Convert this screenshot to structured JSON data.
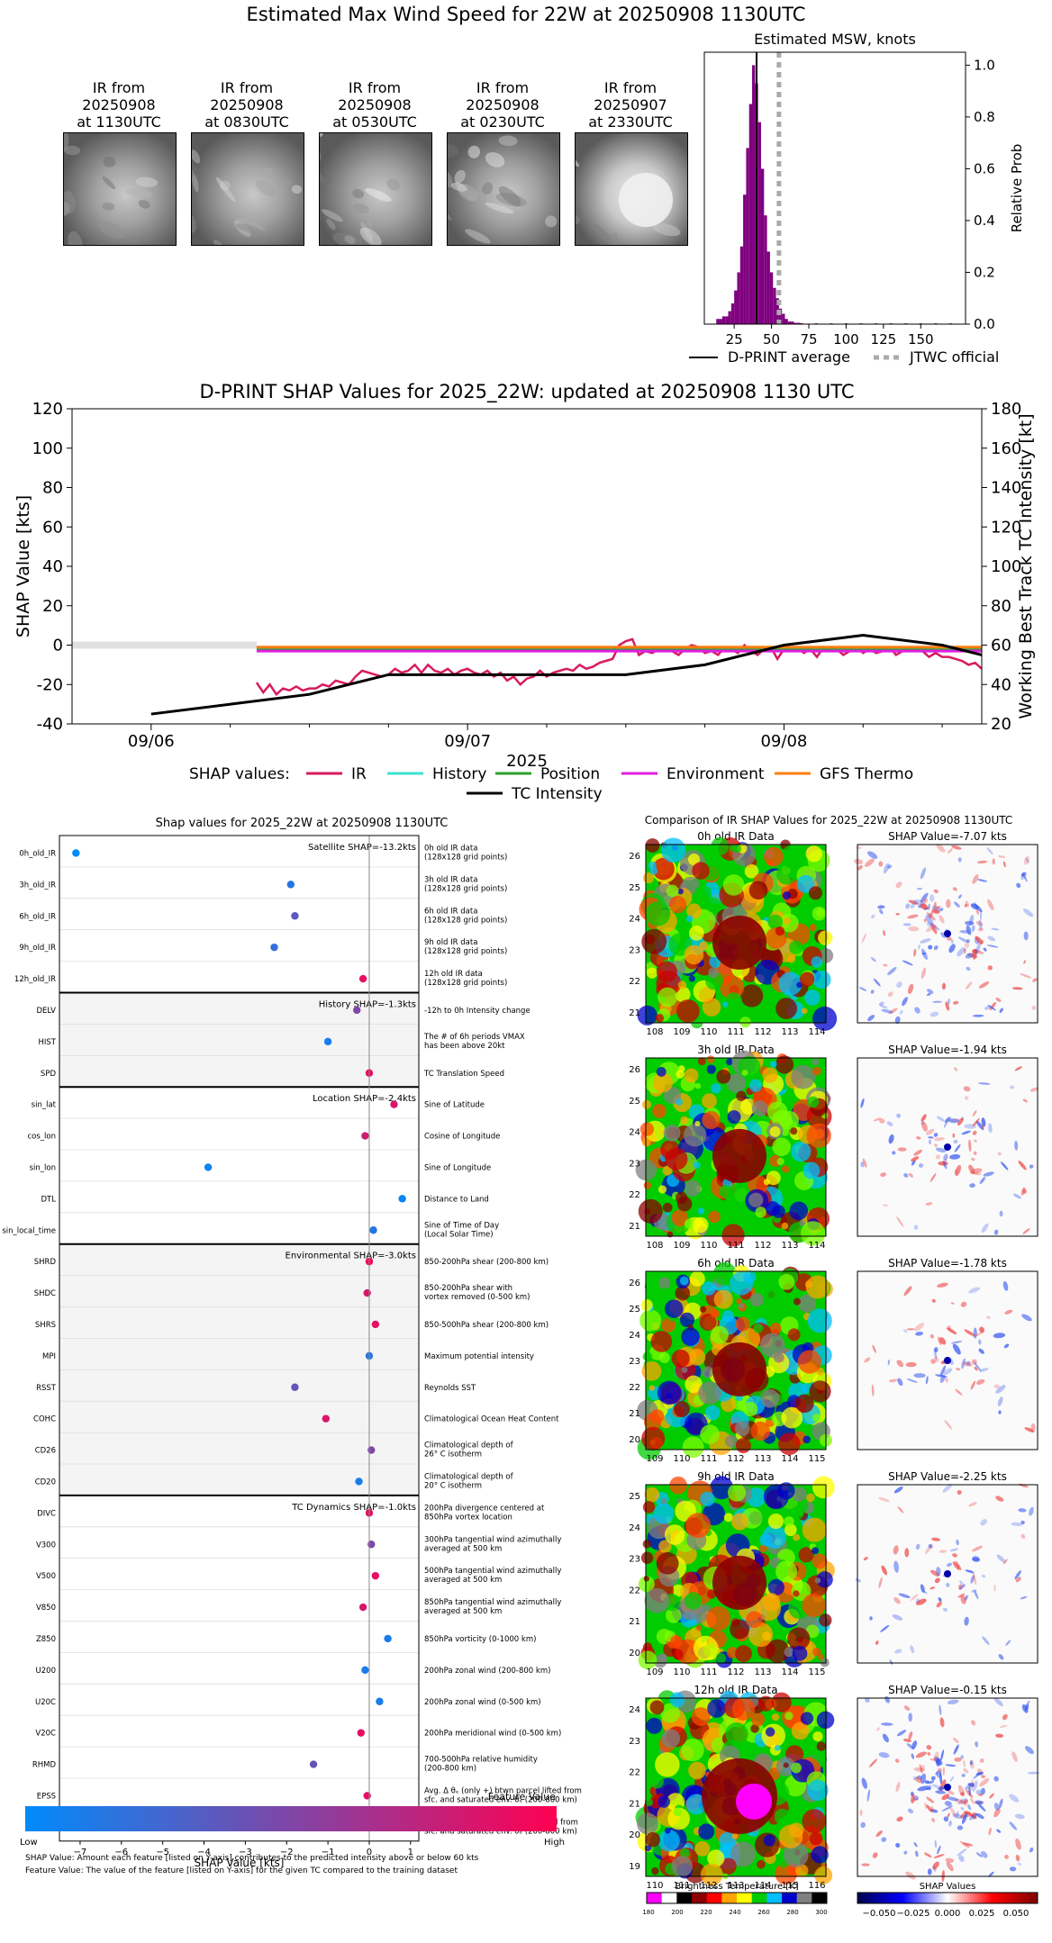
{
  "page_title": "Estimated Max Wind Speed for 22W at 20250908 1130UTC",
  "ir_thumbnails": [
    {
      "caption": [
        "IR from",
        "20250908",
        "at 1130UTC"
      ]
    },
    {
      "caption": [
        "IR from",
        "20250908",
        "at 0830UTC"
      ]
    },
    {
      "caption": [
        "IR from",
        "20250908",
        "at 0530UTC"
      ]
    },
    {
      "caption": [
        "IR from",
        "20250908",
        "at 0230UTC"
      ]
    },
    {
      "caption": [
        "IR from",
        "20250907",
        "at 2330UTC"
      ]
    }
  ],
  "chart_data": [
    {
      "type": "bar",
      "title": "Estimated MSW, knots",
      "ylabel": "Relative Prob",
      "xlim": [
        5,
        180
      ],
      "ylim": [
        0,
        1.05
      ],
      "xticks": [
        25,
        50,
        75,
        100,
        125,
        150
      ],
      "yticks": [
        0.0,
        0.2,
        0.4,
        0.6,
        0.8,
        1.0
      ],
      "bar_width": 2,
      "bar_color": "#800080",
      "x": [
        14,
        16,
        18,
        20,
        22,
        24,
        26,
        28,
        30,
        32,
        34,
        36,
        38,
        40,
        42,
        44,
        46,
        48,
        50,
        52,
        54,
        56,
        58,
        60,
        62,
        64,
        66,
        68,
        70,
        80,
        90,
        100,
        110,
        120,
        130,
        140,
        150,
        160,
        170
      ],
      "values": [
        0.02,
        0.02,
        0.03,
        0.03,
        0.05,
        0.08,
        0.13,
        0.2,
        0.3,
        0.5,
        0.68,
        0.85,
        1.0,
        0.93,
        0.78,
        0.6,
        0.42,
        0.28,
        0.2,
        0.14,
        0.1,
        0.06,
        0.04,
        0.02,
        0.01,
        0.01,
        0.005,
        0.005,
        0.004,
        0.003,
        0.003,
        0.003,
        0.003,
        0.003,
        0.003,
        0.003,
        0.003,
        0.003,
        0.003
      ],
      "dprint_average": 40,
      "jtwc_official": 55,
      "legend": [
        {
          "label": "D-PRINT average",
          "color": "#000000",
          "style": "solid"
        },
        {
          "label": "JTWC official",
          "color": "#aaaaaa",
          "style": "dotted"
        }
      ]
    },
    {
      "type": "line",
      "title": "D-PRINT SHAP Values for 2025_22W: updated at 20250908 1130 UTC",
      "xlabel": "2025",
      "ylabel": "SHAP Value [kts]",
      "y2label": "Working Best Track TC Intensity [kt]",
      "xlim_hours": [
        -6,
        63
      ],
      "xticks": [
        {
          "label": "09/06",
          "hour": 0
        },
        {
          "label": "09/07",
          "hour": 24
        },
        {
          "label": "09/08",
          "hour": 48
        }
      ],
      "ylim": [
        -40,
        120
      ],
      "yticks": [
        -40,
        -20,
        0,
        20,
        40,
        60,
        80,
        100,
        120
      ],
      "y2lim": [
        20,
        180
      ],
      "y2ticks": [
        20,
        40,
        60,
        80,
        100,
        120,
        140,
        160,
        180
      ],
      "series": [
        {
          "name": "IR",
          "color": "#d81b60",
          "x": [
            8,
            8.5,
            9,
            9.5,
            10,
            10.5,
            11,
            11.5,
            12,
            12.5,
            13,
            13.5,
            14,
            14.5,
            15,
            15.5,
            16,
            16.5,
            17,
            17.5,
            18,
            18.5,
            19,
            19.5,
            20,
            20.5,
            21,
            21.5,
            22,
            22.5,
            23,
            23.5,
            24,
            24.5,
            25,
            25.5,
            26,
            26.5,
            27,
            27.5,
            28,
            28.5,
            29,
            29.5,
            30,
            30.5,
            31,
            31.5,
            32,
            32.5,
            33,
            33.5,
            34,
            34.5,
            35,
            35.5,
            36,
            36.5,
            37,
            37.5,
            38,
            38.5,
            39,
            39.5,
            40,
            40.5,
            41,
            41.5,
            42,
            42.5,
            43,
            43.5,
            44,
            44.5,
            45,
            45.5,
            46,
            46.5,
            47,
            47.5,
            48,
            48.5,
            49,
            49.5,
            50,
            50.5,
            51,
            51.5,
            52,
            52.5,
            53,
            53.5,
            54,
            54.5,
            55,
            55.5,
            56,
            56.5,
            57,
            57.5,
            58,
            58.5,
            59,
            59.5,
            60,
            60.5,
            61,
            61.5,
            62,
            62.5,
            63
          ],
          "values": [
            -19,
            -24,
            -20,
            -25,
            -22,
            -23,
            -21,
            -23,
            -22,
            -22,
            -20,
            -21,
            -18,
            -19,
            -20,
            -16,
            -13,
            -14,
            -15,
            -16,
            -15,
            -12,
            -14,
            -13,
            -10,
            -14,
            -10,
            -13,
            -14,
            -12,
            -15,
            -13,
            -12,
            -14,
            -15,
            -13,
            -16,
            -14,
            -18,
            -16,
            -20,
            -17,
            -16,
            -13,
            -16,
            -14,
            -13,
            -12,
            -13,
            -10,
            -12,
            -11,
            -9,
            -8,
            -7,
            0,
            2,
            3,
            -5,
            -3,
            -4,
            -2,
            -1,
            -3,
            -5,
            -2,
            0,
            -1,
            -4,
            -3,
            -5,
            -1,
            -2,
            -4,
            0,
            -3,
            -5,
            -2,
            -1,
            -7,
            -2,
            -3,
            -1,
            -4,
            -2,
            -6,
            -1,
            -3,
            -2,
            -5,
            -3,
            -1,
            -4,
            -2,
            -4,
            -3,
            -1,
            -5,
            -3,
            -2,
            -1,
            -3,
            -6,
            -4,
            -6,
            -6,
            -7,
            -8,
            -10,
            -9,
            -12
          ]
        },
        {
          "name": "History",
          "color": "#40e0d0",
          "x": [
            8,
            63
          ],
          "values": [
            -1.3,
            -1.3
          ]
        },
        {
          "name": "Position",
          "color": "#2ca02c",
          "x": [
            8,
            63
          ],
          "values": [
            -2.4,
            -2.4
          ]
        },
        {
          "name": "Environment",
          "color": "#e020e0",
          "x": [
            8,
            63
          ],
          "values": [
            -3.0,
            -3.0
          ]
        },
        {
          "name": "GFS Thermo",
          "color": "#ff7f0e",
          "x": [
            8,
            63
          ],
          "values": [
            -1.0,
            -1.0
          ]
        },
        {
          "name": "TC Intensity",
          "color": "#000000",
          "axis": "right",
          "x": [
            0,
            6,
            12,
            18,
            24,
            30,
            36,
            42,
            48,
            54,
            60,
            63
          ],
          "values": [
            25,
            30,
            35,
            45,
            45,
            45,
            45,
            50,
            60,
            65,
            60,
            55
          ]
        }
      ],
      "legend_prefix": "SHAP values:"
    },
    {
      "type": "scatter",
      "title": "Shap values for 2025_22W at 20250908 1130UTC",
      "xlabel": "SHAP Value [kts]",
      "xlim": [
        -7.5,
        1.2
      ],
      "xticks": [
        -7,
        -6,
        -5,
        -4,
        -3,
        -2,
        -1,
        0,
        1
      ],
      "groups": [
        {
          "label": "Satellite SHAP=-13.2kts",
          "shaded": false,
          "features": [
            {
              "name": "0h_old_IR",
              "shap": -7.1,
              "value": 0.0,
              "desc": [
                "0h old IR data",
                "(128x128 grid points)"
              ]
            },
            {
              "name": "3h_old_IR",
              "shap": -1.9,
              "value": 0.15,
              "desc": [
                "3h old IR data",
                "(128x128 grid points)"
              ]
            },
            {
              "name": "6h_old_IR",
              "shap": -1.8,
              "value": 0.35,
              "desc": [
                "6h old IR data",
                "(128x128 grid points)"
              ]
            },
            {
              "name": "9h_old_IR",
              "shap": -2.3,
              "value": 0.2,
              "desc": [
                "9h old IR data",
                "(128x128 grid points)"
              ]
            },
            {
              "name": "12h_old_IR",
              "shap": -0.15,
              "value": 0.9,
              "desc": [
                "12h old IR data",
                "(128x128 grid points)"
              ]
            }
          ]
        },
        {
          "label": "History SHAP=-1.3kts",
          "shaded": true,
          "features": [
            {
              "name": "DELV",
              "shap": -0.3,
              "value": 0.5,
              "desc": [
                "-12h to 0h Intensity change"
              ]
            },
            {
              "name": "HIST",
              "shap": -1.0,
              "value": 0.1,
              "desc": [
                "The # of 6h periods VMAX",
                "has been above 20kt"
              ]
            },
            {
              "name": "SPD",
              "shap": 0.0,
              "value": 0.9,
              "desc": [
                "TC Translation Speed"
              ]
            }
          ]
        },
        {
          "label": "Location SHAP=-2.4kts",
          "shaded": false,
          "features": [
            {
              "name": "sin_lat",
              "shap": 0.6,
              "value": 0.85,
              "desc": [
                "Sine of Latitude"
              ]
            },
            {
              "name": "cos_lon",
              "shap": -0.1,
              "value": 0.8,
              "desc": [
                "Cosine of Longitude"
              ]
            },
            {
              "name": "sin_lon",
              "shap": -3.9,
              "value": 0.05,
              "desc": [
                "Sine of Longitude"
              ]
            },
            {
              "name": "DTL",
              "shap": 0.8,
              "value": 0.05,
              "desc": [
                "Distance to Land"
              ]
            },
            {
              "name": "sin_local_time",
              "shap": 0.1,
              "value": 0.15,
              "desc": [
                "Sine of Time of Day",
                "(Local Solar Time)"
              ]
            }
          ]
        },
        {
          "label": "Environmental SHAP=-3.0kts",
          "shaded": true,
          "features": [
            {
              "name": "SHRD",
              "shap": 0.0,
              "value": 0.95,
              "desc": [
                "850-200hPa shear (200-800 km)"
              ]
            },
            {
              "name": "SHDC",
              "shap": -0.05,
              "value": 0.85,
              "desc": [
                "850-200hPa shear with",
                "vortex removed (0-500 km)"
              ]
            },
            {
              "name": "SHRS",
              "shap": 0.15,
              "value": 0.9,
              "desc": [
                "850-500hPa shear (200-800 km)"
              ]
            },
            {
              "name": "MPI",
              "shap": 0.0,
              "value": 0.15,
              "desc": [
                "Maximum potential intensity"
              ]
            },
            {
              "name": "RSST",
              "shap": -1.8,
              "value": 0.4,
              "desc": [
                "Reynolds SST"
              ]
            },
            {
              "name": "COHC",
              "shap": -1.05,
              "value": 0.85,
              "desc": [
                "Climatological Ocean Heat Content"
              ]
            },
            {
              "name": "CD26",
              "shap": 0.05,
              "value": 0.5,
              "desc": [
                "Climatological depth of",
                "26° C isotherm"
              ]
            },
            {
              "name": "CD20",
              "shap": -0.25,
              "value": 0.1,
              "desc": [
                "Climatological depth of",
                "20° C isotherm"
              ]
            }
          ]
        },
        {
          "label": "TC Dynamics SHAP=-1.0kts",
          "shaded": false,
          "features": [
            {
              "name": "DIVC",
              "shap": 0.0,
              "value": 0.9,
              "desc": [
                "200hPa divergence centered at",
                "850hPa vortex location"
              ]
            },
            {
              "name": "V300",
              "shap": 0.05,
              "value": 0.5,
              "desc": [
                "300hPa tangential wind azimuthally",
                "averaged at 500 km"
              ]
            },
            {
              "name": "V500",
              "shap": 0.15,
              "value": 0.9,
              "desc": [
                "500hPa tangential wind azimuthally",
                "averaged at 500 km"
              ]
            },
            {
              "name": "V850",
              "shap": -0.15,
              "value": 0.85,
              "desc": [
                "850hPa tangential wind azimuthally",
                "averaged at 500 km"
              ]
            },
            {
              "name": "Z850",
              "shap": 0.45,
              "value": 0.1,
              "desc": [
                "850hPa vorticity (0-1000 km)"
              ]
            },
            {
              "name": "U200",
              "shap": -0.1,
              "value": 0.1,
              "desc": [
                "200hPa zonal wind (200-800 km)"
              ]
            },
            {
              "name": "U20C",
              "shap": 0.25,
              "value": 0.1,
              "desc": [
                "200hPa zonal wind (0-500 km)"
              ]
            },
            {
              "name": "V20C",
              "shap": -0.2,
              "value": 0.9,
              "desc": [
                "200hPa meridional wind (0-500 km)"
              ]
            },
            {
              "name": "RHMD",
              "shap": -1.35,
              "value": 0.4,
              "desc": [
                "700-500hPa relative humidity",
                "(200-800 km)"
              ]
            },
            {
              "name": "EPSS",
              "shap": -0.05,
              "value": 0.9,
              "desc": [
                "Avg. Δ θₑ (only +) btwn parcel lifted from",
                "sfc. and saturated env. θₑ (200-800 km)"
              ]
            },
            {
              "name": "ENSS",
              "shap": -0.1,
              "value": 0.9,
              "desc": [
                "Avg. Δ θₑ (only -) btwn parcel lifted from",
                "sfc. and saturated env. θₑ (200-800 km)"
              ]
            }
          ]
        }
      ]
    }
  ],
  "colorbar": {
    "title": "Feature Value",
    "low": "Low",
    "high": "High",
    "low_color": "#008bfb",
    "high_color": "#ff0052"
  },
  "footnotes": [
    "SHAP Value: Amount each feature [listed on Y-axis] contributes to the predicted intensity above or below 60 kts",
    "Feature Value: The value of the feature [listed on Y-axis] for the given TC compared to the training dataset"
  ],
  "ir_comparison": {
    "title": "Comparison of IR SHAP Values for 2025_22W at 20250908 1130UTC",
    "rows": [
      {
        "ir_title": "0h old IR Data",
        "shap_title": "SHAP Value=-7.07 kts",
        "xticks": [
          "108",
          "109",
          "110",
          "111",
          "112",
          "113",
          "114"
        ],
        "yticks": [
          "26",
          "25",
          "24",
          "23",
          "22",
          "21"
        ]
      },
      {
        "ir_title": "3h old IR Data",
        "shap_title": "SHAP Value=-1.94 kts",
        "xticks": [
          "108",
          "109",
          "110",
          "111",
          "112",
          "113",
          "114"
        ],
        "yticks": [
          "26",
          "25",
          "24",
          "23",
          "22",
          "21"
        ]
      },
      {
        "ir_title": "6h old IR Data",
        "shap_title": "SHAP Value=-1.78 kts",
        "xticks": [
          "109",
          "110",
          "111",
          "112",
          "113",
          "114",
          "115"
        ],
        "yticks": [
          "26",
          "25",
          "24",
          "23",
          "22",
          "21",
          "20"
        ]
      },
      {
        "ir_title": "9h old IR Data",
        "shap_title": "SHAP Value=-2.25 kts",
        "xticks": [
          "109",
          "110",
          "111",
          "112",
          "113",
          "114",
          "115"
        ],
        "yticks": [
          "25",
          "24",
          "23",
          "22",
          "21",
          "20"
        ]
      },
      {
        "ir_title": "12h old IR Data",
        "shap_title": "SHAP Value=-0.15 kts",
        "xticks": [
          "110",
          "111",
          "112",
          "113",
          "114",
          "115",
          "116"
        ],
        "yticks": [
          "24",
          "23",
          "22",
          "21",
          "20",
          "19"
        ]
      }
    ],
    "bt_colorbar": {
      "title": "Brightness Temperature [K]",
      "ticks": [
        "180",
        "200",
        "220",
        "240",
        "260",
        "280",
        "300"
      ]
    },
    "shap_colorbar": {
      "title": "SHAP Values",
      "ticks": [
        "−0.050",
        "−0.025",
        "0.000",
        "0.025",
        "0.050"
      ]
    }
  }
}
